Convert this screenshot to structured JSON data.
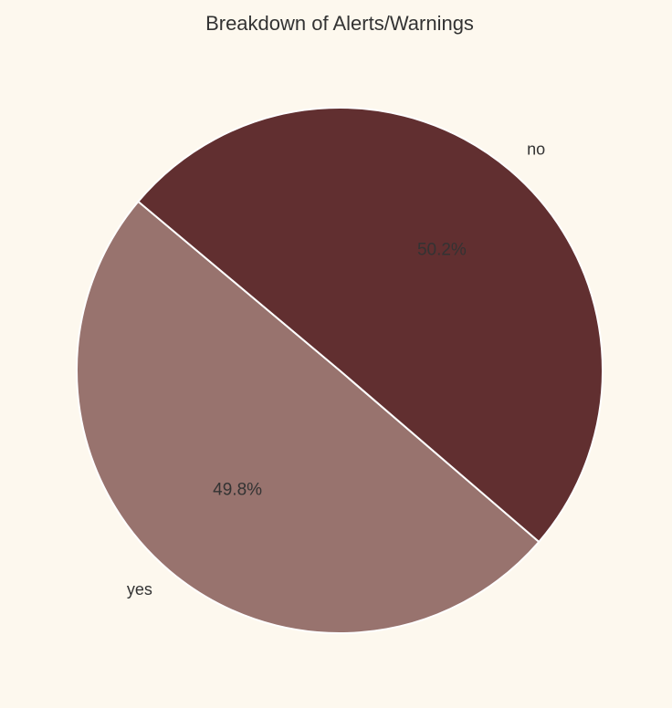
{
  "colors": {
    "background": "#fdf8ee",
    "text": "#333333",
    "slice_edge": "#ffffff"
  },
  "chart_data": {
    "type": "pie",
    "title": "Breakdown of Alerts/Warnings",
    "slices": [
      {
        "label": "yes",
        "value": 49.8,
        "pct_label": "49.8%",
        "color": "#98736e"
      },
      {
        "label": "no",
        "value": 50.2,
        "pct_label": "50.2%",
        "color": "#612f30"
      }
    ],
    "start_angle_deg": 140,
    "direction": "counterclockwise",
    "legend": "none"
  }
}
